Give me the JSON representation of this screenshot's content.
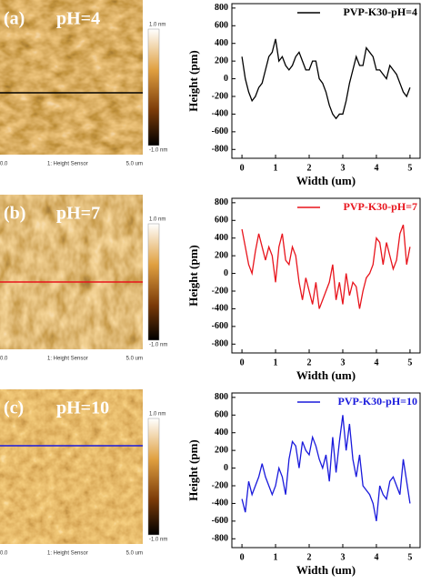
{
  "panels": [
    {
      "label": "(a)",
      "ph": "pH=4",
      "scale_max": "1.0 nm",
      "scale_min": "-1.0 nm",
      "x_start": "0.0",
      "sensor": "1: Height Sensor",
      "x_end": "5.0 um"
    },
    {
      "label": "(b)",
      "ph": "pH=7",
      "scale_max": "1.0 nm",
      "scale_min": "-1.0 nm",
      "x_start": "0.0",
      "sensor": "1: Height Sensor",
      "x_end": "5.0 um"
    },
    {
      "label": "(c)",
      "ph": "pH=10",
      "scale_max": "1.0 nm",
      "scale_min": "-1.0 nm",
      "x_start": "0.0",
      "sensor": "1: Height Sensor",
      "x_end": "5.0 um"
    }
  ],
  "chart_data": [
    {
      "type": "line",
      "x_label": "Width (um)",
      "y_label": "Height (pm)",
      "legend": "upper right",
      "xlim": [
        -0.3,
        5.3
      ],
      "xticks": [
        0,
        1,
        2,
        3,
        4,
        5
      ],
      "ylim": [
        -900,
        850
      ],
      "yticks": [
        -800,
        -600,
        -400,
        -200,
        0,
        200,
        400,
        600,
        800
      ],
      "x": [
        0,
        0.1,
        0.2,
        0.3,
        0.4,
        0.5,
        0.6,
        0.7,
        0.8,
        0.9,
        1,
        1.1,
        1.2,
        1.3,
        1.4,
        1.5,
        1.6,
        1.7,
        1.8,
        1.9,
        2,
        2.1,
        2.2,
        2.3,
        2.4,
        2.5,
        2.6,
        2.7,
        2.8,
        2.9,
        3,
        3.1,
        3.2,
        3.3,
        3.4,
        3.5,
        3.6,
        3.7,
        3.8,
        3.9,
        4,
        4.1,
        4.2,
        4.3,
        4.4,
        4.5,
        4.6,
        4.7,
        4.8,
        4.9,
        5
      ],
      "series": [
        {
          "name": "PVP-K30-pH=4",
          "color": "#000000",
          "values": [
            250,
            0,
            -150,
            -250,
            -200,
            -100,
            -50,
            100,
            250,
            300,
            450,
            200,
            250,
            150,
            100,
            150,
            250,
            300,
            200,
            100,
            100,
            200,
            200,
            0,
            -50,
            -150,
            -300,
            -400,
            -450,
            -400,
            -400,
            -250,
            -50,
            100,
            250,
            150,
            150,
            350,
            300,
            250,
            100,
            100,
            50,
            0,
            150,
            100,
            50,
            -50,
            -150,
            -200,
            -100
          ]
        }
      ]
    },
    {
      "type": "line",
      "x_label": "Width (um)",
      "y_label": "Height (pm)",
      "legend": "upper right",
      "xlim": [
        -0.3,
        5.3
      ],
      "xticks": [
        0,
        1,
        2,
        3,
        4,
        5
      ],
      "ylim": [
        -900,
        850
      ],
      "yticks": [
        -800,
        -600,
        -400,
        -200,
        0,
        200,
        400,
        600,
        800
      ],
      "x": [
        0,
        0.1,
        0.2,
        0.3,
        0.4,
        0.5,
        0.6,
        0.7,
        0.8,
        0.9,
        1,
        1.1,
        1.2,
        1.3,
        1.4,
        1.5,
        1.6,
        1.7,
        1.8,
        1.9,
        2,
        2.1,
        2.2,
        2.3,
        2.4,
        2.5,
        2.6,
        2.7,
        2.8,
        2.9,
        3,
        3.1,
        3.2,
        3.3,
        3.4,
        3.5,
        3.6,
        3.7,
        3.8,
        3.9,
        4,
        4.1,
        4.2,
        4.3,
        4.4,
        4.5,
        4.6,
        4.7,
        4.8,
        4.9,
        5
      ],
      "series": [
        {
          "name": "PVP-K30-pH=7",
          "color": "#e8141c",
          "values": [
            500,
            300,
            100,
            0,
            250,
            450,
            300,
            150,
            300,
            200,
            -100,
            300,
            450,
            150,
            100,
            300,
            200,
            -100,
            -300,
            -50,
            -200,
            -350,
            -100,
            -400,
            -300,
            -200,
            -100,
            100,
            -300,
            -100,
            -350,
            0,
            -250,
            -100,
            -150,
            -400,
            -200,
            -50,
            0,
            100,
            400,
            350,
            100,
            350,
            200,
            50,
            150,
            450,
            550,
            100,
            300
          ]
        }
      ]
    },
    {
      "type": "line",
      "x_label": "Width (um)",
      "y_label": "Height (pm)",
      "legend": "upper right",
      "xlim": [
        -0.3,
        5.3
      ],
      "xticks": [
        0,
        1,
        2,
        3,
        4,
        5
      ],
      "ylim": [
        -900,
        850
      ],
      "yticks": [
        -800,
        -600,
        -400,
        -200,
        0,
        200,
        400,
        600,
        800
      ],
      "x": [
        0,
        0.1,
        0.2,
        0.3,
        0.4,
        0.5,
        0.6,
        0.7,
        0.8,
        0.9,
        1,
        1.1,
        1.2,
        1.3,
        1.4,
        1.5,
        1.6,
        1.7,
        1.8,
        1.9,
        2,
        2.1,
        2.2,
        2.3,
        2.4,
        2.5,
        2.6,
        2.7,
        2.8,
        2.9,
        3,
        3.1,
        3.2,
        3.3,
        3.4,
        3.5,
        3.6,
        3.7,
        3.8,
        3.9,
        4,
        4.1,
        4.2,
        4.3,
        4.4,
        4.5,
        4.6,
        4.7,
        4.8,
        4.9,
        5
      ],
      "series": [
        {
          "name": "PVP-K30-pH=10",
          "color": "#1a1adc",
          "values": [
            -350,
            -500,
            -150,
            -300,
            -200,
            -100,
            50,
            -100,
            -200,
            -300,
            -200,
            0,
            -100,
            -300,
            100,
            300,
            250,
            0,
            300,
            200,
            150,
            350,
            250,
            100,
            0,
            150,
            -150,
            350,
            -50,
            300,
            600,
            200,
            500,
            100,
            -100,
            150,
            -200,
            -250,
            -300,
            -400,
            -600,
            -200,
            -300,
            -350,
            -150,
            -100,
            -200,
            -300,
            100,
            -150,
            -400
          ]
        }
      ]
    }
  ]
}
